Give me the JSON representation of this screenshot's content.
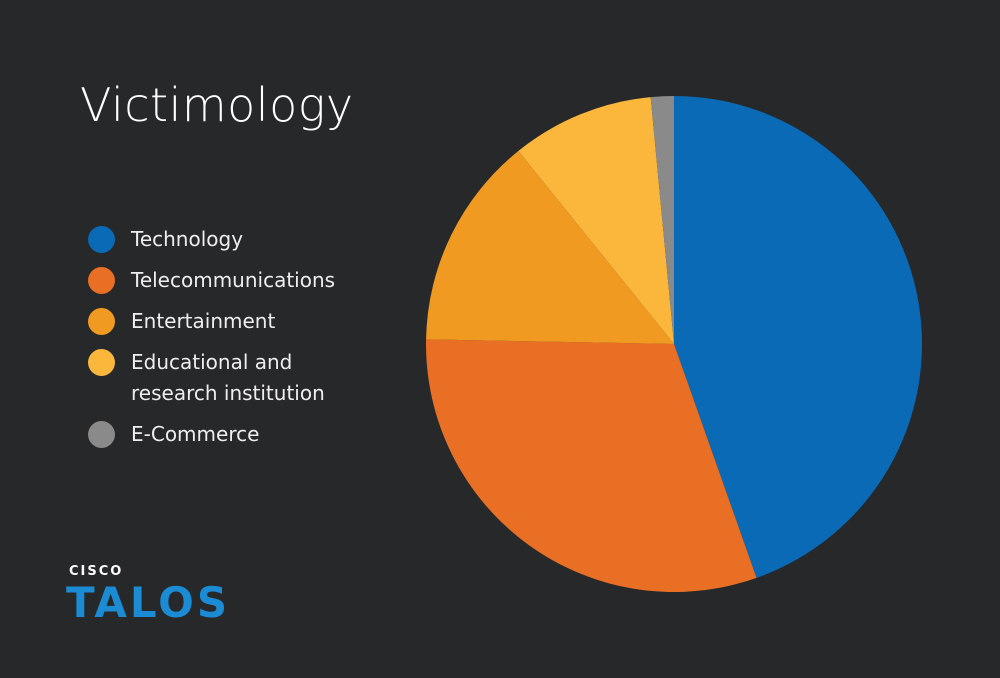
{
  "chart_data": {
    "type": "pie",
    "title": "Victimology",
    "categories": [
      "Technology",
      "Telecommunications",
      "Entertainment",
      "Educational and research institution",
      "E-Commerce"
    ],
    "values": [
      44.6,
      30.7,
      13.9,
      9.3,
      1.5
    ],
    "colors": [
      "#0a6ab6",
      "#e86f24",
      "#f09a22",
      "#fbb73c",
      "#8a8a8a"
    ],
    "legend": "left"
  },
  "logo": {
    "brand": "CISCO",
    "product": "TALOS"
  }
}
